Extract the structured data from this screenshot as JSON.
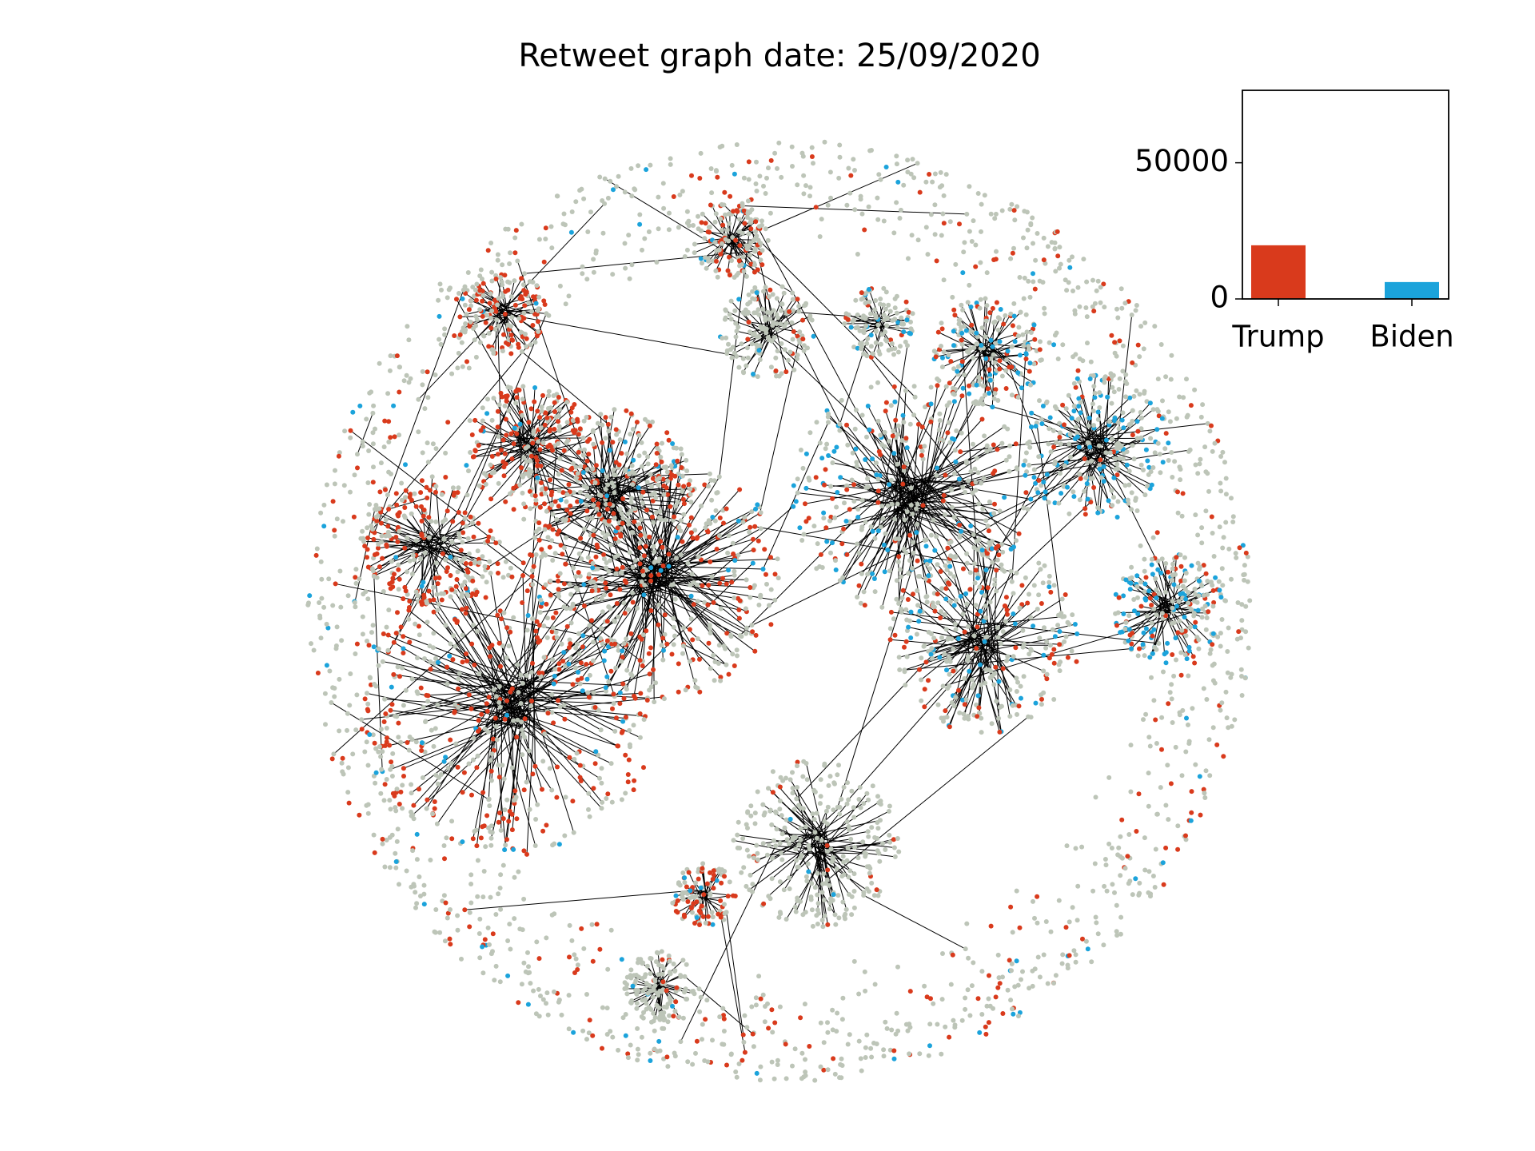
{
  "chart_data": {
    "type": "bar",
    "title": "Retweet graph date: 25/09/2020",
    "categories": [
      "Trump",
      "Biden"
    ],
    "values": [
      19700,
      6200
    ],
    "colors": [
      "#d93a1c",
      "#1ba3db"
    ],
    "ylim": [
      0,
      76600
    ],
    "yticks": [
      0,
      50000
    ]
  }
}
